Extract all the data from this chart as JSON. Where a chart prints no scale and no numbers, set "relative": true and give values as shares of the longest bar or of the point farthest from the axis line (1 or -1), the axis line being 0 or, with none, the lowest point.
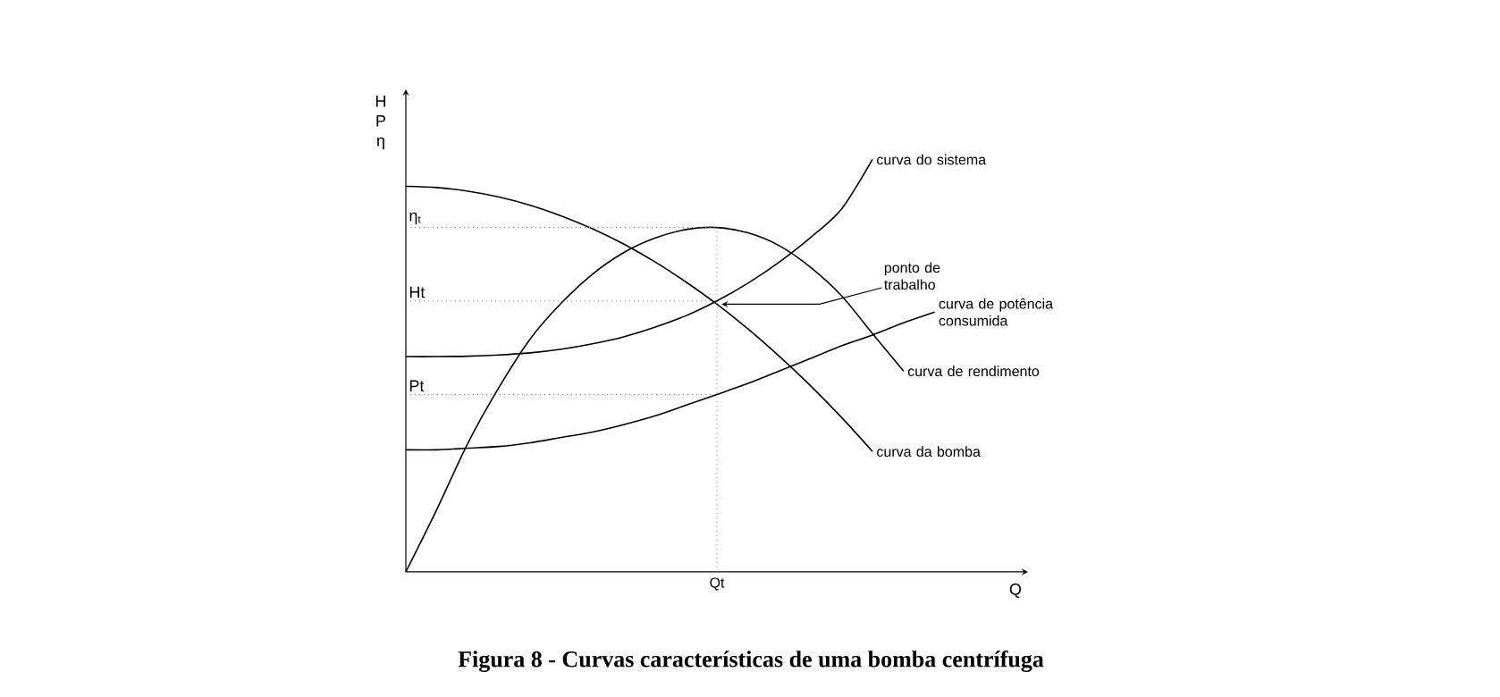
{
  "chart_data": {
    "type": "line",
    "title": "**Figura 8 - Curvas características de uma bomba centrífuga**",
    "ylabel": "H P η",
    "xlabel": "Q",
    "relative": true,
    "categories": [
      null,
      null,
      null,
      null,
      null,
      null,
      null,
      null,
      null,
      null,
      null,
      null,
      null,
      null,
      null,
      null,
      null,
      null,
      null,
      null,
      null
    ],
    "series": [
      {
        "name": "curva da bomba",
        "color": "#000000",
        "values": [
          0.935,
          0.932,
          0.923,
          0.909,
          0.889,
          0.863,
          0.832,
          0.795,
          0.752,
          0.703,
          0.649,
          0.589,
          0.523,
          0.452,
          0.375,
          0.292,
          null,
          null,
          null,
          null,
          null
        ]
      },
      {
        "name": "curva do sistema",
        "color": "#000000",
        "values": [
          0.522,
          0.522,
          0.523,
          0.526,
          0.531,
          0.54,
          0.553,
          0.57,
          0.593,
          0.621,
          0.657,
          0.7,
          0.751,
          0.81,
          0.879,
          1.0,
          null,
          null,
          null,
          null,
          null
        ]
      },
      {
        "name": "curva de rendimento",
        "color": "#000000",
        "values": [
          0,
          0.152,
          0.313,
          0.448,
          0.565,
          0.652,
          0.722,
          0.774,
          0.809,
          0.83,
          0.835,
          0.822,
          0.791,
          0.739,
          0.67,
          0.578,
          0.487,
          null,
          null,
          null,
          null
        ]
      },
      {
        "name": "curva de potência consumida",
        "color": "#000000",
        "values": [
          0.296,
          0.296,
          0.3,
          0.304,
          0.313,
          0.326,
          0.339,
          0.357,
          0.378,
          0.404,
          0.43,
          0.457,
          0.487,
          0.517,
          0.548,
          0.574,
          0.604,
          0.63,
          null,
          null,
          null
        ]
      }
    ],
    "ref_lines": [
      {
        "axis": "y",
        "value": 0.835,
        "label": "η$_{t}$",
        "color": "#808080",
        "line_style": "dotted"
      },
      {
        "axis": "y",
        "value": 0.657,
        "label": "Ht",
        "color": "#808080",
        "line_style": "dotted"
      },
      {
        "axis": "y",
        "value": 0.43,
        "label": "Pt",
        "color": "#808080",
        "line_style": "dotted"
      }
    ],
    "annotations": [
      "ponto de trabalho",
      "Qt"
    ]
  }
}
